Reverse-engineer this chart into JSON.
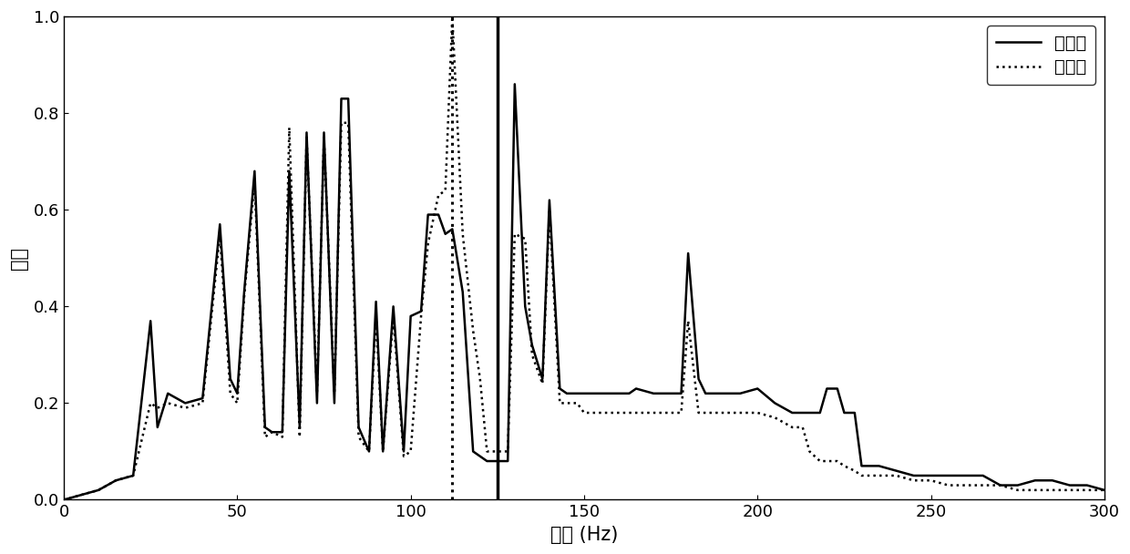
{
  "solid_x": [
    0,
    5,
    10,
    15,
    20,
    25,
    27,
    30,
    35,
    40,
    45,
    48,
    50,
    52,
    55,
    58,
    60,
    63,
    65,
    68,
    70,
    73,
    75,
    78,
    80,
    82,
    85,
    88,
    90,
    92,
    95,
    98,
    100,
    103,
    105,
    108,
    110,
    112,
    115,
    118,
    120,
    122,
    125,
    128,
    130,
    133,
    135,
    138,
    140,
    143,
    145,
    148,
    150,
    155,
    160,
    163,
    165,
    170,
    175,
    178,
    180,
    183,
    185,
    188,
    190,
    195,
    200,
    205,
    210,
    213,
    215,
    218,
    220,
    223,
    225,
    228,
    230,
    235,
    240,
    245,
    248,
    250,
    255,
    260,
    265,
    270,
    275,
    280,
    285,
    290,
    295,
    300
  ],
  "solid_y": [
    0.0,
    0.01,
    0.02,
    0.04,
    0.05,
    0.37,
    0.15,
    0.22,
    0.2,
    0.21,
    0.57,
    0.25,
    0.22,
    0.43,
    0.68,
    0.15,
    0.14,
    0.14,
    0.68,
    0.15,
    0.76,
    0.2,
    0.76,
    0.2,
    0.83,
    0.83,
    0.15,
    0.1,
    0.41,
    0.1,
    0.4,
    0.1,
    0.38,
    0.39,
    0.59,
    0.59,
    0.55,
    0.56,
    0.43,
    0.1,
    0.09,
    0.08,
    0.08,
    0.08,
    0.86,
    0.4,
    0.32,
    0.25,
    0.62,
    0.23,
    0.22,
    0.22,
    0.22,
    0.22,
    0.22,
    0.22,
    0.23,
    0.22,
    0.22,
    0.22,
    0.51,
    0.25,
    0.22,
    0.22,
    0.22,
    0.22,
    0.23,
    0.2,
    0.18,
    0.18,
    0.18,
    0.18,
    0.23,
    0.23,
    0.18,
    0.18,
    0.07,
    0.07,
    0.06,
    0.05,
    0.05,
    0.05,
    0.05,
    0.05,
    0.05,
    0.03,
    0.03,
    0.04,
    0.04,
    0.03,
    0.03,
    0.02
  ],
  "dotted_x": [
    0,
    5,
    10,
    15,
    20,
    25,
    27,
    30,
    35,
    40,
    45,
    48,
    50,
    52,
    55,
    58,
    60,
    63,
    65,
    68,
    70,
    73,
    75,
    78,
    80,
    82,
    85,
    88,
    90,
    92,
    95,
    98,
    100,
    103,
    105,
    108,
    110,
    112,
    115,
    118,
    120,
    122,
    125,
    128,
    130,
    133,
    135,
    138,
    140,
    143,
    145,
    148,
    150,
    155,
    160,
    163,
    165,
    170,
    175,
    178,
    180,
    183,
    185,
    188,
    190,
    195,
    200,
    205,
    210,
    213,
    215,
    218,
    220,
    223,
    225,
    228,
    230,
    235,
    240,
    245,
    248,
    250,
    255,
    260,
    265,
    270,
    275,
    280,
    285,
    290,
    295,
    300
  ],
  "dotted_y": [
    0.0,
    0.01,
    0.02,
    0.04,
    0.05,
    0.2,
    0.19,
    0.2,
    0.19,
    0.2,
    0.55,
    0.22,
    0.2,
    0.42,
    0.66,
    0.13,
    0.14,
    0.13,
    0.77,
    0.13,
    0.75,
    0.22,
    0.75,
    0.22,
    0.78,
    0.78,
    0.13,
    0.1,
    0.38,
    0.1,
    0.38,
    0.09,
    0.1,
    0.38,
    0.53,
    0.63,
    0.64,
    1.0,
    0.55,
    0.35,
    0.25,
    0.1,
    0.1,
    0.1,
    0.55,
    0.54,
    0.3,
    0.24,
    0.6,
    0.2,
    0.2,
    0.2,
    0.18,
    0.18,
    0.18,
    0.18,
    0.18,
    0.18,
    0.18,
    0.18,
    0.37,
    0.18,
    0.18,
    0.18,
    0.18,
    0.18,
    0.18,
    0.17,
    0.15,
    0.15,
    0.1,
    0.08,
    0.08,
    0.08,
    0.07,
    0.06,
    0.05,
    0.05,
    0.05,
    0.04,
    0.04,
    0.04,
    0.03,
    0.03,
    0.03,
    0.03,
    0.02,
    0.02,
    0.02,
    0.02,
    0.02,
    0.02
  ],
  "vline_dotted_x": 112,
  "vline_solid_x": 125,
  "xlabel": "频率 (Hz)",
  "ylabel": "幅值",
  "xlim": [
    0,
    300
  ],
  "ylim": [
    0,
    1.0
  ],
  "xticks": [
    0,
    50,
    100,
    150,
    200,
    250,
    300
  ],
  "yticks": [
    0,
    0.2,
    0.4,
    0.6,
    0.8,
    1
  ],
  "legend_solid": "疲劳前",
  "legend_dotted": "疲劳后",
  "line_color": "#000000",
  "bg_color": "#ffffff",
  "font_size_label": 15,
  "font_size_tick": 13,
  "font_size_legend": 14
}
